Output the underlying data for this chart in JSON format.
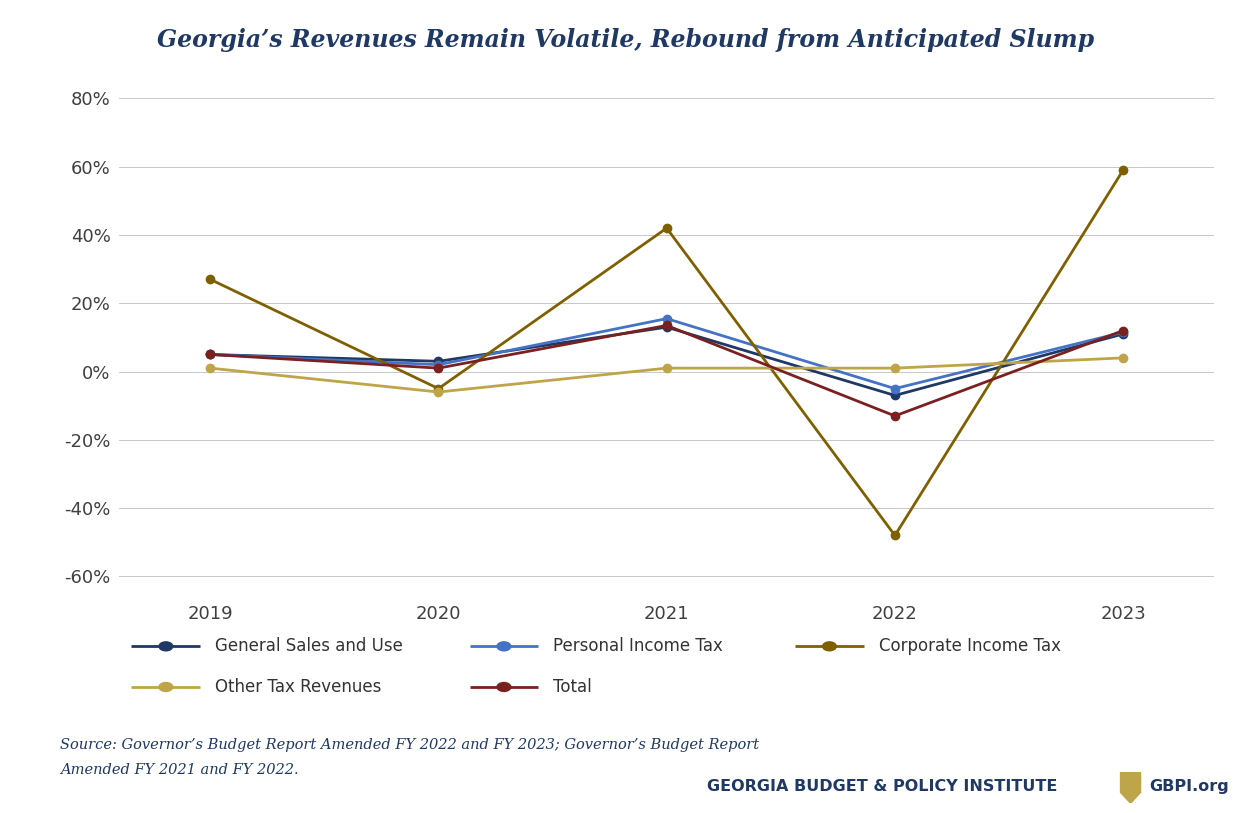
{
  "title": "Georgia’s Revenues Remain Volatile, Rebound from Anticipated Slump",
  "years": [
    2019,
    2020,
    2021,
    2022,
    2023
  ],
  "series": [
    {
      "name": "General Sales and Use",
      "values": [
        0.05,
        0.03,
        0.13,
        -0.07,
        0.11
      ],
      "color": "#1F3864"
    },
    {
      "name": "Personal Income Tax",
      "values": [
        0.05,
        0.02,
        0.155,
        -0.05,
        0.115
      ],
      "color": "#4472C4"
    },
    {
      "name": "Corporate Income Tax",
      "values": [
        0.27,
        -0.05,
        0.42,
        -0.48,
        0.59
      ],
      "color": "#7F6000"
    },
    {
      "name": "Other Tax Revenues",
      "values": [
        0.01,
        -0.06,
        0.01,
        0.01,
        0.04
      ],
      "color": "#BFA54A"
    },
    {
      "name": "Total",
      "values": [
        0.05,
        0.01,
        0.135,
        -0.13,
        0.12
      ],
      "color": "#7B2020"
    }
  ],
  "ylim": [
    -0.65,
    0.85
  ],
  "yticks": [
    -0.6,
    -0.4,
    -0.2,
    0.0,
    0.2,
    0.4,
    0.6,
    0.8
  ],
  "source_text_line1": "Source: Governor’s Budget Report Amended FY 2022 and FY 2023; Governor’s Budget Report",
  "source_text_line2": "Amended FY 2021 and FY 2022.",
  "gbpi_text": "GEORGIA BUDGET & POLICY INSTITUTE",
  "gbpi_url": "GBPI.org",
  "title_color": "#1F3864",
  "source_color": "#1F3864",
  "gbpi_color": "#1F3864",
  "bg_color": "#FFFFFF",
  "grid_color": "#C8C8C8",
  "legend_row1": [
    "General Sales and Use",
    "Personal Income Tax",
    "Corporate Income Tax"
  ],
  "legend_row2": [
    "Other Tax Revenues",
    "Total"
  ]
}
